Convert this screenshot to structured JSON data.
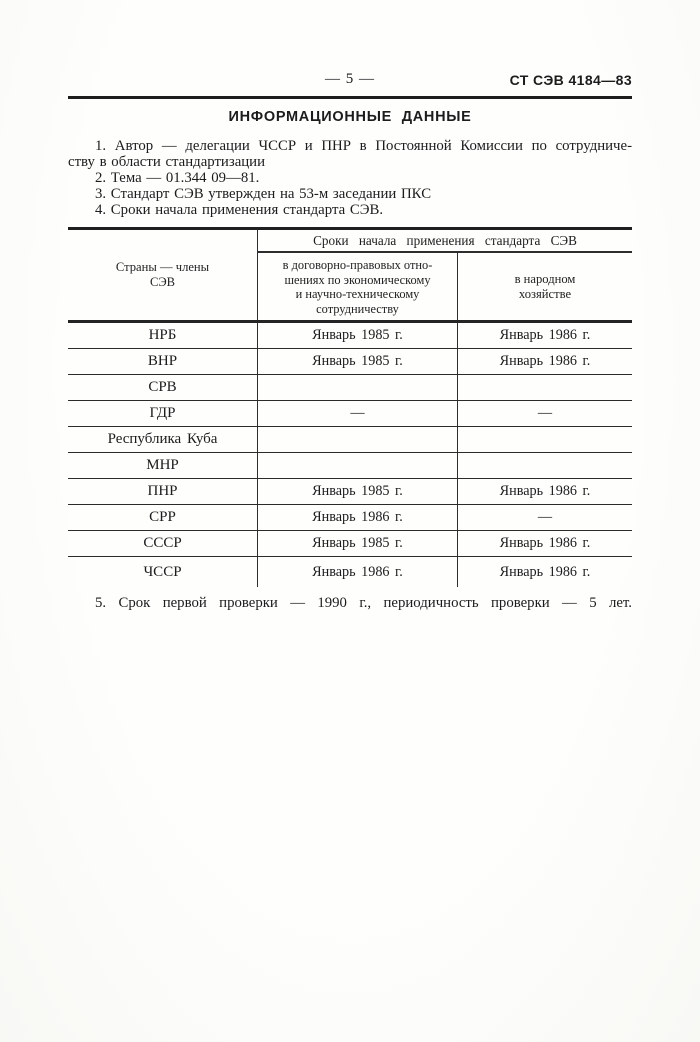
{
  "colors": {
    "ink": "#1c1c1c",
    "paper": "#fcfcfa"
  },
  "page_header": {
    "page_number": "— 5 —",
    "doc_code": "СТ СЭВ 4184—83"
  },
  "title": "ИНФОРМАЦИОННЫЕ ДАННЫЕ",
  "info": {
    "item1_line1": "1. Автор — делегации ЧССР и ПНР в Постоянной Комиссии по сотрудниче-",
    "item1_line2": "ству в области стандартизации",
    "item2": "2. Тема — 01.344 09—81.",
    "item3": "3. Стандарт СЭВ утвержден на 53-м заседании ПКС",
    "item4": "4. Сроки начала применения стандарта СЭВ.",
    "item5": "5. Срок первой проверки — 1990 г., периодичность проверки — 5 лет."
  },
  "table": {
    "col1_header_lines": [
      "Страны — члены",
      "СЭВ"
    ],
    "span_header": "Сроки начала применения стандарта СЭВ",
    "col2_header_lines": [
      "в договорно-правовых отно-",
      "шениях по экономическому",
      "и научно-техническому",
      "сотрудничеству"
    ],
    "col3_header_lines": [
      "в народном",
      "хозяйстве"
    ],
    "rows": [
      {
        "country": "НРБ",
        "contractual": "Январь 1985 г.",
        "national": "Январь 1986 г."
      },
      {
        "country": "ВНР",
        "contractual": "Январь 1985 г.",
        "national": "Январь 1986 г."
      },
      {
        "country": "СРВ",
        "contractual": "",
        "national": ""
      },
      {
        "country": "ГДР",
        "contractual": "—",
        "national": "—"
      },
      {
        "country": "Республика Куба",
        "contractual": "",
        "national": ""
      },
      {
        "country": "МНР",
        "contractual": "",
        "national": ""
      },
      {
        "country": "ПНР",
        "contractual": "Январь 1985 г.",
        "national": "Январь 1986 г."
      },
      {
        "country": "СРР",
        "contractual": "Январь 1986 г.",
        "national": "—"
      },
      {
        "country": "СССР",
        "contractual": "Январь 1985 г.",
        "national": "Январь 1986 г."
      },
      {
        "country": "ЧССР",
        "contractual": "Январь 1986 г.",
        "national": "Январь 1986 г."
      }
    ]
  }
}
